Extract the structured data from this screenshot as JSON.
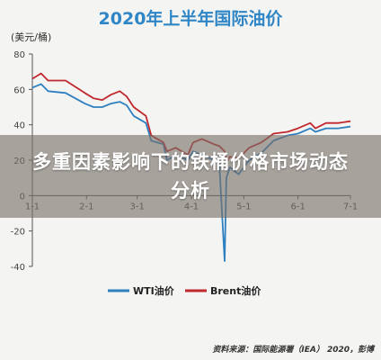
{
  "banner": {
    "text": "多重因素影响下的铁桶价格市场动态分析"
  },
  "chart_data": {
    "type": "line",
    "title": "2020年上半年国际油价",
    "ylabel": "(美元/桶)",
    "xlabel": "",
    "ylim": [
      -40,
      80
    ],
    "yticks": [
      80,
      60,
      40,
      20,
      0,
      -20,
      -40
    ],
    "xtick_labels": [
      "1-1",
      "2-1",
      "3-1",
      "4-1",
      "5-1",
      "6-1",
      "7-1"
    ],
    "x_range": [
      "1-1",
      "7-1"
    ],
    "grid": false,
    "legend_position": "bottom",
    "source": "资料来源：国际能源署（IEA） 2020，彭博",
    "series": [
      {
        "name": "WTI油价",
        "color": "#2e7fc0",
        "points": [
          [
            "1-1",
            61
          ],
          [
            "1-6",
            63
          ],
          [
            "1-10",
            59
          ],
          [
            "1-20",
            58
          ],
          [
            "1-31",
            52
          ],
          [
            "2-5",
            50
          ],
          [
            "2-10",
            50
          ],
          [
            "2-15",
            52
          ],
          [
            "2-20",
            53
          ],
          [
            "2-24",
            51
          ],
          [
            "2-28",
            45
          ],
          [
            "3-6",
            41
          ],
          [
            "3-9",
            31
          ],
          [
            "3-16",
            29
          ],
          [
            "3-18",
            20
          ],
          [
            "3-23",
            23
          ],
          [
            "3-30",
            20
          ],
          [
            "4-2",
            25
          ],
          [
            "4-7",
            23
          ],
          [
            "4-14",
            20
          ],
          [
            "4-17",
            18
          ],
          [
            "4-20",
            -37
          ],
          [
            "4-21",
            10
          ],
          [
            "4-23",
            16
          ],
          [
            "4-28",
            12
          ],
          [
            "5-4",
            20
          ],
          [
            "5-11",
            24
          ],
          [
            "5-18",
            31
          ],
          [
            "5-26",
            34
          ],
          [
            "6-1",
            35
          ],
          [
            "6-8",
            38
          ],
          [
            "6-11",
            36
          ],
          [
            "6-17",
            38
          ],
          [
            "6-24",
            38
          ],
          [
            "7-1",
            39
          ]
        ]
      },
      {
        "name": "Brent油价",
        "color": "#c0282e",
        "points": [
          [
            "1-1",
            66
          ],
          [
            "1-6",
            69
          ],
          [
            "1-10",
            65
          ],
          [
            "1-20",
            65
          ],
          [
            "1-31",
            58
          ],
          [
            "2-5",
            55
          ],
          [
            "2-10",
            54
          ],
          [
            "2-15",
            57
          ],
          [
            "2-20",
            59
          ],
          [
            "2-24",
            56
          ],
          [
            "2-28",
            50
          ],
          [
            "3-6",
            45
          ],
          [
            "3-9",
            34
          ],
          [
            "3-16",
            30
          ],
          [
            "3-18",
            25
          ],
          [
            "3-23",
            27
          ],
          [
            "3-30",
            23
          ],
          [
            "4-2",
            30
          ],
          [
            "4-7",
            32
          ],
          [
            "4-14",
            29
          ],
          [
            "4-17",
            28
          ],
          [
            "4-20",
            25
          ],
          [
            "4-21",
            19
          ],
          [
            "4-23",
            22
          ],
          [
            "4-28",
            21
          ],
          [
            "5-4",
            27
          ],
          [
            "5-11",
            30
          ],
          [
            "5-18",
            35
          ],
          [
            "5-26",
            36
          ],
          [
            "6-1",
            38
          ],
          [
            "6-8",
            41
          ],
          [
            "6-11",
            38
          ],
          [
            "6-17",
            41
          ],
          [
            "6-24",
            41
          ],
          [
            "7-1",
            42
          ]
        ]
      }
    ]
  }
}
